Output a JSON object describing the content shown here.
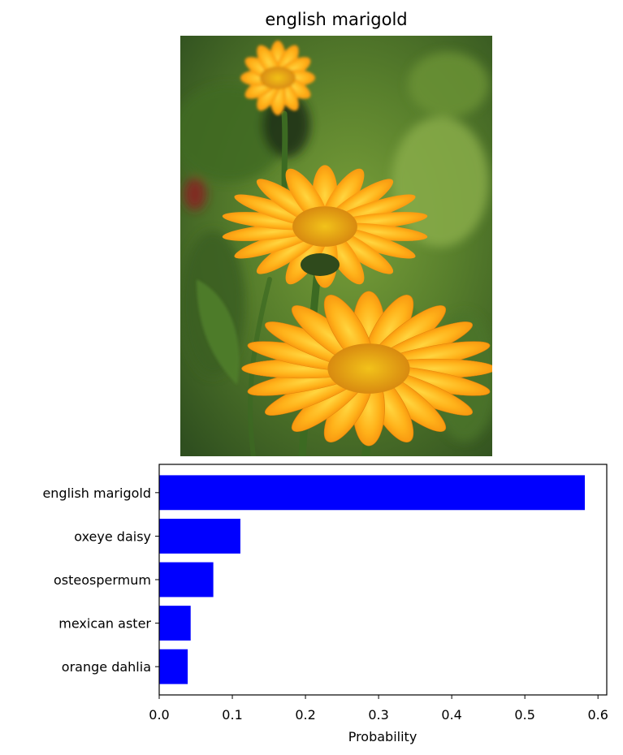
{
  "header": {
    "title": "english marigold"
  },
  "image": {
    "subject": "orange-flower-photo"
  },
  "chart_data": {
    "type": "bar",
    "orientation": "horizontal",
    "categories": [
      "english marigold",
      "oxeye daisy",
      "osteospermum",
      "mexican aster",
      "orange dahlia"
    ],
    "values": [
      0.582,
      0.111,
      0.074,
      0.043,
      0.039
    ],
    "xlabel": "Probability",
    "ylabel": "",
    "xlim": [
      0,
      0.612
    ],
    "xticks": [
      0.0,
      0.1,
      0.2,
      0.3,
      0.4,
      0.5,
      0.6
    ],
    "xtick_labels": [
      "0.0",
      "0.1",
      "0.2",
      "0.3",
      "0.4",
      "0.5",
      "0.6"
    ],
    "bar_color": "#0000ff",
    "grid": false,
    "legend": "none"
  }
}
